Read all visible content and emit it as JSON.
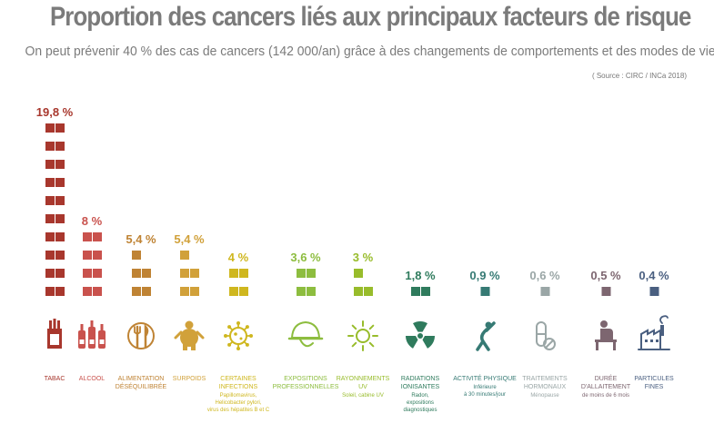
{
  "header": {
    "title": "Proportion des cancers liés aux principaux facteurs de risque",
    "subtitle": "On peut prévenir 40 % des cas de cancers (142 000/an) grâce à des changements de comportements et des modes de vie",
    "source": "( Source : CIRC / INCa 2018)"
  },
  "chart_data": {
    "type": "bar",
    "title": "Proportion des cancers liés aux principaux facteurs de risque",
    "unit": "%",
    "ylim": [
      0,
      19.8
    ],
    "categories": [
      {
        "label_lines": [
          "TABAC"
        ],
        "sub_lines": [],
        "value": 19.8,
        "value_label": "19,8 %",
        "color": "#a8372d",
        "icon": "cigarettes-icon"
      },
      {
        "label_lines": [
          "ALCOOL"
        ],
        "sub_lines": [],
        "value": 8,
        "value_label": "8 %",
        "color": "#c9524d",
        "icon": "bottles-icon"
      },
      {
        "label_lines": [
          "ALIMENTATION",
          "DÉSÉQUILIBRÉE"
        ],
        "sub_lines": [],
        "value": 5.4,
        "value_label": "5,4 %",
        "color": "#bf8334",
        "icon": "fork-knife-icon"
      },
      {
        "label_lines": [
          "SURPOIDS"
        ],
        "sub_lines": [],
        "value": 5.4,
        "value_label": "5,4 %",
        "color": "#d1a13a",
        "icon": "person-overweight-icon"
      },
      {
        "label_lines": [
          "CERTAINES",
          "INFECTIONS"
        ],
        "sub_lines": [
          "Papillomavirus,",
          "Helicobacter pylori,",
          "virus des hépatites B et C"
        ],
        "value": 4,
        "value_label": "4 %",
        "color": "#cfb71f",
        "icon": "virus-icon"
      },
      {
        "label_lines": [
          "EXPOSITIONS",
          "PROFESSIONNELLES"
        ],
        "sub_lines": [],
        "value": 3.6,
        "value_label": "3,6 %",
        "color": "#8dbd3f",
        "icon": "hard-hat-icon"
      },
      {
        "label_lines": [
          "RAYONNEMENTS",
          "UV"
        ],
        "sub_lines": [
          "Soleil, cabine UV"
        ],
        "value": 3,
        "value_label": "3 %",
        "color": "#98bc2b",
        "icon": "sun-icon"
      },
      {
        "label_lines": [
          "RADIATIONS",
          "IONISANTES"
        ],
        "sub_lines": [
          "Radon,",
          "expositions",
          "diagnostiques"
        ],
        "value": 1.8,
        "value_label": "1,8 %",
        "color": "#2f7b5d",
        "icon": "radiation-icon"
      },
      {
        "label_lines": [
          "ACTIVITÉ PHYSIQUE"
        ],
        "sub_lines": [
          "Inférieure",
          "à 30 minutes/jour"
        ],
        "value": 0.9,
        "value_label": "0,9 %",
        "color": "#367a74",
        "icon": "stretching-person-icon"
      },
      {
        "label_lines": [
          "TRAITEMENTS",
          "HORMONAUX"
        ],
        "sub_lines": [
          "Ménopause"
        ],
        "value": 0.6,
        "value_label": "0,6 %",
        "color": "#9aa6a6",
        "icon": "pills-icon"
      },
      {
        "label_lines": [
          "DURÉE",
          "D'ALLAITEMENT"
        ],
        "sub_lines": [
          "de moins de 6 mois"
        ],
        "value": 0.5,
        "value_label": "0,5 %",
        "color": "#7d6670",
        "icon": "breastfeeding-icon"
      },
      {
        "label_lines": [
          "PARTICULES",
          "FINES"
        ],
        "sub_lines": [],
        "value": 0.4,
        "value_label": "0,4 %",
        "color": "#4a5f80",
        "icon": "factory-icon"
      }
    ]
  }
}
